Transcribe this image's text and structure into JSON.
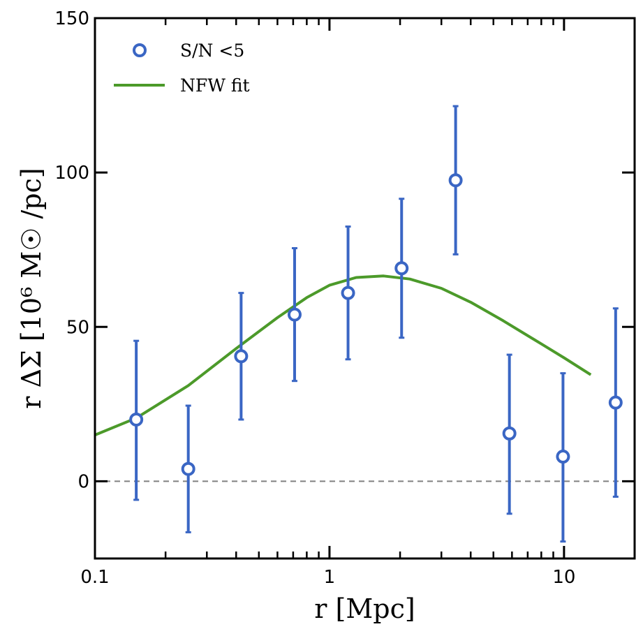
{
  "chart_data": {
    "type": "scatter",
    "title": "",
    "xlabel": "r [Mpc]",
    "ylabel": "r ΔΣ [10⁶ M☉ /pc]",
    "xscale": "log",
    "xlim": [
      0.1,
      20
    ],
    "ylim": [
      -25,
      150
    ],
    "xticks": [
      {
        "value": 0.1,
        "label": "0.1"
      },
      {
        "value": 1,
        "label": "1"
      },
      {
        "value": 10,
        "label": "10"
      }
    ],
    "yticks": [
      {
        "value": 0,
        "label": "0"
      },
      {
        "value": 50,
        "label": "50"
      },
      {
        "value": 100,
        "label": "100"
      },
      {
        "value": 150,
        "label": "150"
      }
    ],
    "reference_line": {
      "y": 0,
      "style": "dashed",
      "color": "#808080"
    },
    "legend_position": "top-left",
    "series": [
      {
        "name": "S/N <5",
        "type": "errorbar-scatter",
        "color": "#3a66c4",
        "x": [
          0.15,
          0.25,
          0.42,
          0.71,
          1.2,
          2.03,
          3.45,
          5.85,
          9.9,
          16.6
        ],
        "y": [
          20,
          4,
          40.5,
          54,
          61,
          69,
          97.5,
          15.5,
          8,
          25.5
        ],
        "yerr_low": [
          -6,
          -16.5,
          20,
          32.5,
          39.5,
          46.5,
          73.5,
          -10.5,
          -19.5,
          -5
        ],
        "yerr_high": [
          45.5,
          24.5,
          61,
          75.5,
          82.5,
          91.5,
          121.5,
          41,
          35,
          56
        ]
      },
      {
        "name": "NFW fit",
        "type": "line",
        "color": "#4c9a2a",
        "x": [
          0.1,
          0.15,
          0.25,
          0.4,
          0.6,
          0.8,
          1.0,
          1.3,
          1.7,
          2.2,
          3.0,
          4.0,
          5.5,
          8.0,
          10.0,
          13.0
        ],
        "y": [
          15,
          20.5,
          31,
          43,
          53,
          59.5,
          63.5,
          66,
          66.5,
          65.5,
          62.5,
          58,
          52,
          44.5,
          40,
          34.5
        ]
      }
    ]
  }
}
